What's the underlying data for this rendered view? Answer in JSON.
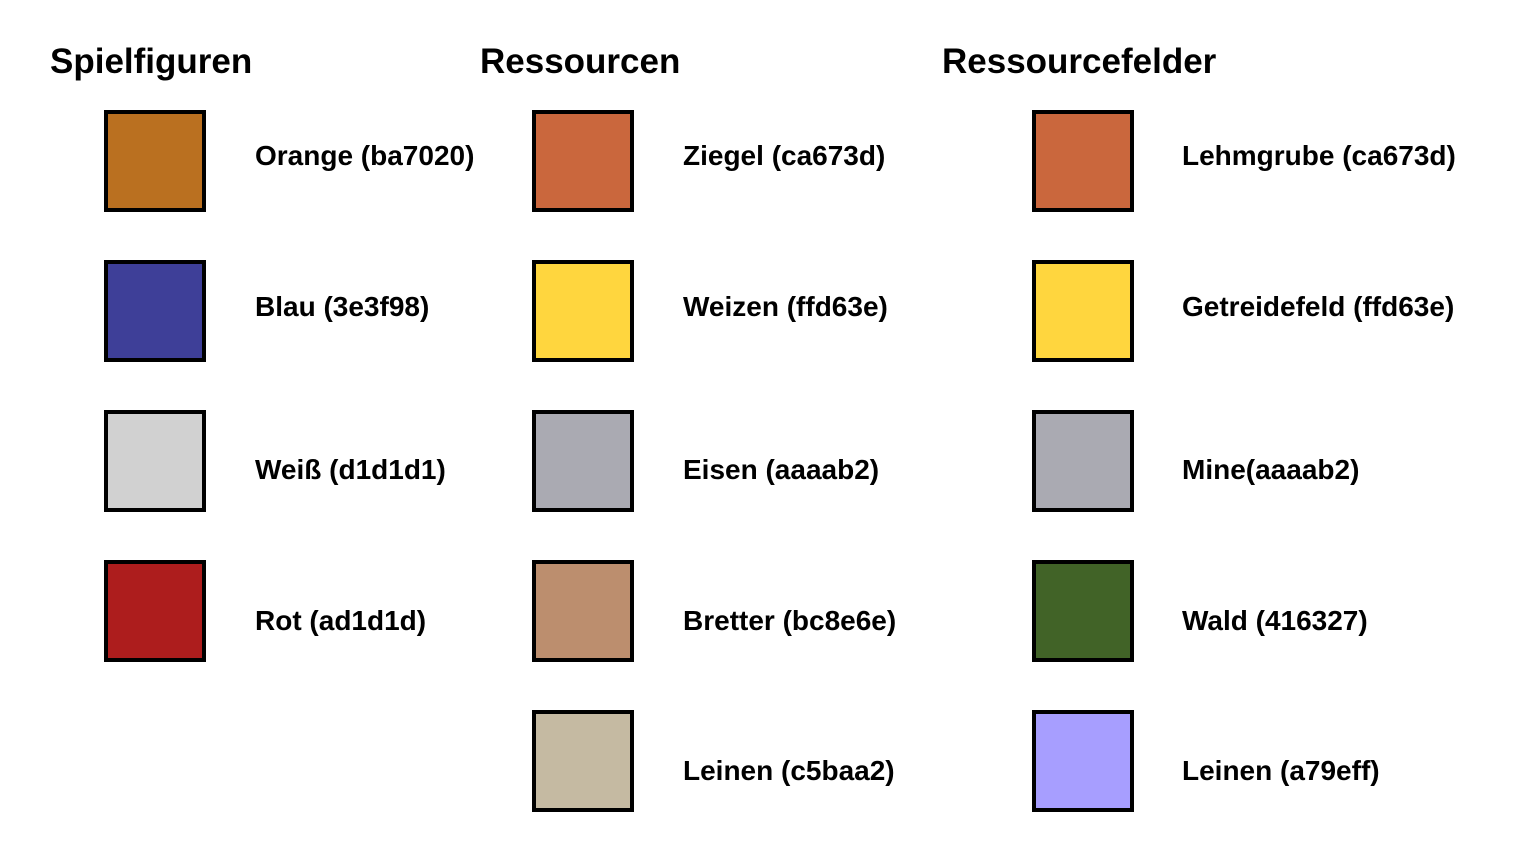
{
  "columns": [
    {
      "title": "Spielfiguren",
      "items": [
        {
          "label": "Orange (ba7020)",
          "color": "#ba7020"
        },
        {
          "label": "Blau (3e3f98)",
          "color": "#3e3f98"
        },
        {
          "label": "Weiß (d1d1d1)",
          "color": "#d1d1d1"
        },
        {
          "label": "Rot (ad1d1d)",
          "color": "#ad1d1d"
        }
      ]
    },
    {
      "title": "Ressourcen",
      "items": [
        {
          "label": "Ziegel (ca673d)",
          "color": "#ca673d"
        },
        {
          "label": "Weizen (ffd63e)",
          "color": "#ffd63e"
        },
        {
          "label": "Eisen (aaaab2)",
          "color": "#aaaab2"
        },
        {
          "label": "Bretter (bc8e6e)",
          "color": "#bc8e6e"
        },
        {
          "label": "Leinen (c5baa2)",
          "color": "#c5baa2"
        }
      ]
    },
    {
      "title": "Ressourcefelder",
      "items": [
        {
          "label": "Lehmgrube (ca673d)",
          "color": "#ca673d"
        },
        {
          "label": "Getreidefeld (ffd63e)",
          "color": "#ffd63e"
        },
        {
          "label": "Mine(aaaab2)",
          "color": "#aaaab2"
        },
        {
          "label": "Wald (416327)",
          "color": "#416327"
        },
        {
          "label": "Leinen (a79eff)",
          "color": "#a79eff"
        }
      ]
    }
  ]
}
